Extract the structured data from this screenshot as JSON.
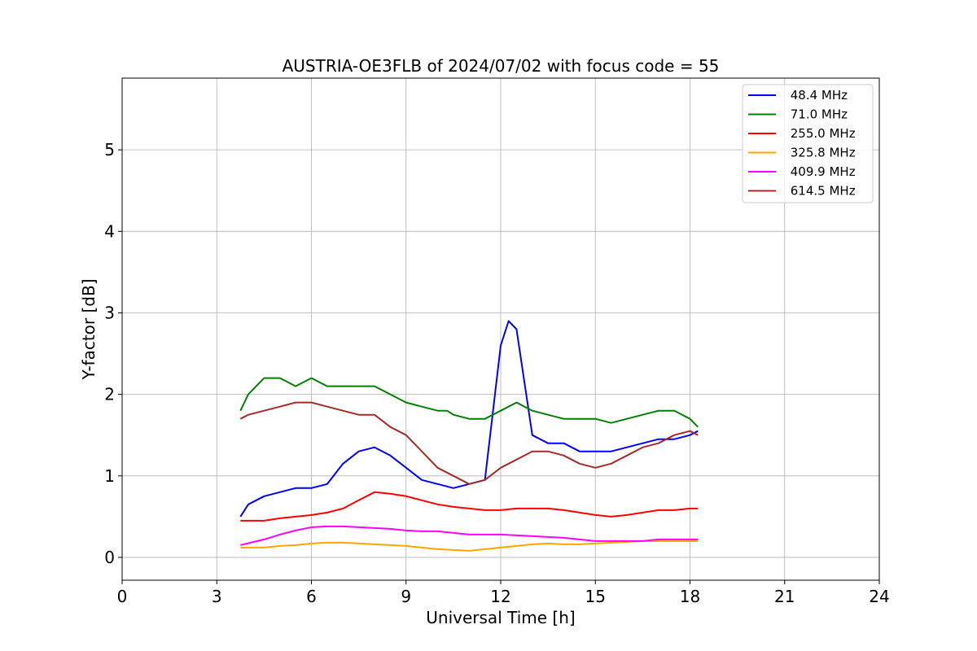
{
  "chart_data": {
    "type": "line",
    "title": "AUSTRIA-OE3FLB of 2024/07/02 with focus code = 55",
    "xlabel": "Universal Time [h]",
    "ylabel": "Y-factor [dB]",
    "xlim": [
      0,
      24
    ],
    "ylim": [
      -0.28,
      5.88
    ],
    "xticks": [
      "0",
      "3",
      "6",
      "9",
      "12",
      "15",
      "18",
      "21",
      "24"
    ],
    "yticks": [
      "0",
      "1",
      "2",
      "3",
      "4",
      "5"
    ],
    "grid": true,
    "legend_position": "upper right",
    "series": [
      {
        "name": " 48.4 MHz",
        "color": "#0000ff",
        "x": [
          3.75,
          4.0,
          4.5,
          5.0,
          5.5,
          6.0,
          6.5,
          7.0,
          7.5,
          8.0,
          8.5,
          9.0,
          9.5,
          10.0,
          10.5,
          11.0,
          11.5,
          12.0,
          12.25,
          12.5,
          13.0,
          13.5,
          14.0,
          14.5,
          15.0,
          15.5,
          16.0,
          16.5,
          17.0,
          17.5,
          18.0,
          18.25
        ],
        "y": [
          0.5,
          0.65,
          0.75,
          0.8,
          0.85,
          0.85,
          0.9,
          1.15,
          1.3,
          1.35,
          1.25,
          1.1,
          0.95,
          0.9,
          0.85,
          0.9,
          0.95,
          2.6,
          2.9,
          2.8,
          1.5,
          1.4,
          1.4,
          1.3,
          1.3,
          1.3,
          1.35,
          1.4,
          1.45,
          1.45,
          1.5,
          1.55
        ]
      },
      {
        "name": " 71.0 MHz",
        "color": "#008000",
        "x": [
          3.75,
          4.0,
          4.5,
          5.0,
          5.5,
          6.0,
          6.5,
          7.0,
          7.5,
          8.0,
          8.5,
          9.0,
          9.5,
          10.0,
          10.3,
          10.5,
          11.0,
          11.5,
          12.0,
          12.5,
          13.0,
          13.5,
          14.0,
          14.5,
          15.0,
          15.5,
          16.0,
          16.5,
          17.0,
          17.5,
          18.0,
          18.25
        ],
        "y": [
          1.8,
          2.0,
          2.2,
          2.2,
          2.1,
          2.2,
          2.1,
          2.1,
          2.1,
          2.1,
          2.0,
          1.9,
          1.85,
          1.8,
          1.8,
          1.75,
          1.7,
          1.7,
          1.8,
          1.9,
          1.8,
          1.75,
          1.7,
          1.7,
          1.7,
          1.65,
          1.7,
          1.75,
          1.8,
          1.8,
          1.7,
          1.6
        ]
      },
      {
        "name": " 255.0 MHz",
        "color": "#ff0000",
        "x": [
          3.75,
          4.5,
          5.0,
          5.5,
          6.0,
          6.5,
          7.0,
          7.5,
          8.0,
          8.5,
          9.0,
          9.5,
          10.0,
          10.5,
          11.0,
          11.5,
          12.0,
          12.5,
          13.0,
          13.5,
          14.0,
          14.5,
          15.0,
          15.5,
          16.0,
          16.5,
          17.0,
          17.5,
          18.0,
          18.25
        ],
        "y": [
          0.45,
          0.45,
          0.48,
          0.5,
          0.52,
          0.55,
          0.6,
          0.7,
          0.8,
          0.78,
          0.75,
          0.7,
          0.65,
          0.62,
          0.6,
          0.58,
          0.58,
          0.6,
          0.6,
          0.6,
          0.58,
          0.55,
          0.52,
          0.5,
          0.52,
          0.55,
          0.58,
          0.58,
          0.6,
          0.6
        ]
      },
      {
        "name": " 325.8 MHz",
        "color": "#ffa500",
        "x": [
          3.75,
          4.5,
          5.0,
          5.5,
          6.0,
          6.5,
          7.0,
          7.5,
          8.0,
          8.5,
          9.0,
          9.5,
          10.0,
          10.5,
          11.0,
          11.5,
          12.0,
          12.5,
          13.0,
          13.5,
          14.0,
          14.5,
          15.0,
          15.5,
          16.0,
          16.5,
          17.0,
          17.5,
          18.0,
          18.25
        ],
        "y": [
          0.12,
          0.12,
          0.14,
          0.15,
          0.17,
          0.18,
          0.18,
          0.17,
          0.16,
          0.15,
          0.14,
          0.12,
          0.1,
          0.09,
          0.08,
          0.1,
          0.12,
          0.14,
          0.16,
          0.17,
          0.16,
          0.16,
          0.17,
          0.18,
          0.19,
          0.2,
          0.2,
          0.2,
          0.2,
          0.2
        ]
      },
      {
        "name": " 409.9 MHz",
        "color": "#ff00ff",
        "x": [
          3.75,
          4.5,
          5.0,
          5.5,
          6.0,
          6.5,
          7.0,
          7.5,
          8.0,
          8.5,
          9.0,
          9.5,
          10.0,
          10.5,
          11.0,
          11.5,
          12.0,
          12.5,
          13.0,
          13.5,
          14.0,
          14.5,
          15.0,
          15.5,
          16.0,
          16.5,
          17.0,
          17.5,
          18.0,
          18.25
        ],
        "y": [
          0.15,
          0.22,
          0.28,
          0.33,
          0.37,
          0.38,
          0.38,
          0.37,
          0.36,
          0.35,
          0.33,
          0.32,
          0.32,
          0.3,
          0.28,
          0.28,
          0.28,
          0.27,
          0.26,
          0.25,
          0.24,
          0.22,
          0.2,
          0.2,
          0.2,
          0.2,
          0.22,
          0.22,
          0.22,
          0.22
        ]
      },
      {
        "name": " 614.5 MHz",
        "color": "#a52a2a",
        "x": [
          3.75,
          4.0,
          4.5,
          5.0,
          5.5,
          6.0,
          6.5,
          7.0,
          7.5,
          8.0,
          8.5,
          9.0,
          9.5,
          10.0,
          10.5,
          11.0,
          11.5,
          12.0,
          12.5,
          13.0,
          13.5,
          14.0,
          14.5,
          15.0,
          15.5,
          16.0,
          16.5,
          17.0,
          17.5,
          18.0,
          18.25
        ],
        "y": [
          1.7,
          1.75,
          1.8,
          1.85,
          1.9,
          1.9,
          1.85,
          1.8,
          1.75,
          1.75,
          1.6,
          1.5,
          1.3,
          1.1,
          1.0,
          0.9,
          0.95,
          1.1,
          1.2,
          1.3,
          1.3,
          1.25,
          1.15,
          1.1,
          1.15,
          1.25,
          1.35,
          1.4,
          1.5,
          1.55,
          1.5
        ]
      }
    ]
  }
}
